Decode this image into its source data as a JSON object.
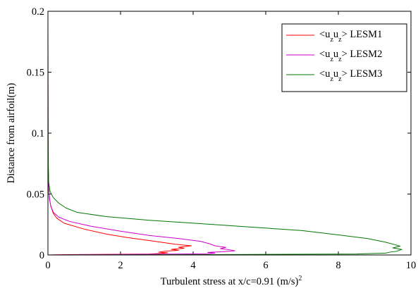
{
  "chart_data": {
    "type": "line",
    "xlabel": "Turbulent stress at x/c=0.91 (m/s)",
    "xlabel_superscript": "2",
    "ylabel": "Distance from airfoil(m)",
    "xlim": [
      0,
      10
    ],
    "ylim": [
      0,
      0.2
    ],
    "xticks": [
      "0",
      "2",
      "4",
      "6",
      "8",
      "10"
    ],
    "yticks": [
      "0",
      "0.05",
      "0.1",
      "0.15",
      "0.2"
    ],
    "grid": false,
    "legend_position": "top-right",
    "series": [
      {
        "name": "<uzuz> LESM1",
        "legend": {
          "open": "<u",
          "sub1": "z",
          "mid": "u",
          "sub2": "z",
          "close": "> LESM1"
        },
        "color": "#ff0000",
        "points": [
          [
            0,
            0.0
          ],
          [
            0.5,
            0.0003
          ],
          [
            1.5,
            0.0005
          ],
          [
            2.8,
            0.0008
          ],
          [
            3.1,
            0.0012
          ],
          [
            3.3,
            0.0018
          ],
          [
            3.05,
            0.0023
          ],
          [
            3.2,
            0.003
          ],
          [
            3.6,
            0.0038
          ],
          [
            3.4,
            0.0046
          ],
          [
            3.75,
            0.0055
          ],
          [
            3.6,
            0.0063
          ],
          [
            3.95,
            0.0075
          ],
          [
            3.5,
            0.0088
          ],
          [
            3.15,
            0.0103
          ],
          [
            2.75,
            0.012
          ],
          [
            2.2,
            0.0142
          ],
          [
            1.6,
            0.0172
          ],
          [
            1.0,
            0.0212
          ],
          [
            0.45,
            0.026
          ],
          [
            0.25,
            0.03
          ],
          [
            0.15,
            0.034
          ],
          [
            0.08,
            0.04
          ],
          [
            0.04,
            0.046
          ],
          [
            0.02,
            0.055
          ],
          [
            0.01,
            0.07
          ],
          [
            0.004,
            0.1
          ],
          [
            0.001,
            0.15
          ],
          [
            0,
            0.19
          ]
        ]
      },
      {
        "name": "<uzuz> LESM2",
        "legend": {
          "open": "<u",
          "sub1": "z",
          "mid": "u",
          "sub2": "z",
          "close": "> LESM2"
        },
        "color": "#cc00cc",
        "points": [
          [
            0,
            0.0
          ],
          [
            1.2,
            0.0003
          ],
          [
            2.6,
            0.0006
          ],
          [
            4.4,
            0.001
          ],
          [
            4.6,
            0.0015
          ],
          [
            4.4,
            0.0021
          ],
          [
            4.8,
            0.0027
          ],
          [
            5.15,
            0.0035
          ],
          [
            5.0,
            0.0043
          ],
          [
            4.75,
            0.0052
          ],
          [
            4.9,
            0.0062
          ],
          [
            4.6,
            0.0075
          ],
          [
            4.45,
            0.0092
          ],
          [
            4.2,
            0.0112
          ],
          [
            3.6,
            0.0135
          ],
          [
            2.8,
            0.016
          ],
          [
            2.0,
            0.0195
          ],
          [
            1.2,
            0.0235
          ],
          [
            0.6,
            0.0275
          ],
          [
            0.3,
            0.031
          ],
          [
            0.15,
            0.035
          ],
          [
            0.08,
            0.04
          ],
          [
            0.05,
            0.045
          ],
          [
            0.02,
            0.055
          ],
          [
            0.01,
            0.07
          ],
          [
            0.004,
            0.1
          ],
          [
            0.001,
            0.15
          ],
          [
            0,
            0.19
          ]
        ]
      },
      {
        "name": "<uzuz> LESM3",
        "legend": {
          "open": "<u",
          "sub1": "z",
          "mid": "u",
          "sub2": "z",
          "close": "> LESM3"
        },
        "color": "#007700",
        "points": [
          [
            0,
            0.0
          ],
          [
            4.5,
            0.0003
          ],
          [
            8.5,
            0.0008
          ],
          [
            9.3,
            0.0015
          ],
          [
            9.4,
            0.0022
          ],
          [
            9.6,
            0.003
          ],
          [
            9.75,
            0.0045
          ],
          [
            9.5,
            0.0058
          ],
          [
            9.7,
            0.0072
          ],
          [
            9.55,
            0.0085
          ],
          [
            9.3,
            0.0105
          ],
          [
            8.8,
            0.0135
          ],
          [
            8.0,
            0.0165
          ],
          [
            7.0,
            0.02
          ],
          [
            5.8,
            0.0225
          ],
          [
            4.3,
            0.0255
          ],
          [
            2.8,
            0.0285
          ],
          [
            1.6,
            0.0315
          ],
          [
            0.8,
            0.035
          ],
          [
            0.5,
            0.0385
          ],
          [
            0.3,
            0.0425
          ],
          [
            0.15,
            0.047
          ],
          [
            0.06,
            0.052
          ],
          [
            0.02,
            0.06
          ],
          [
            0.01,
            0.075
          ],
          [
            0.005,
            0.1
          ],
          [
            0.002,
            0.14
          ],
          [
            0,
            0.19
          ]
        ]
      }
    ]
  }
}
